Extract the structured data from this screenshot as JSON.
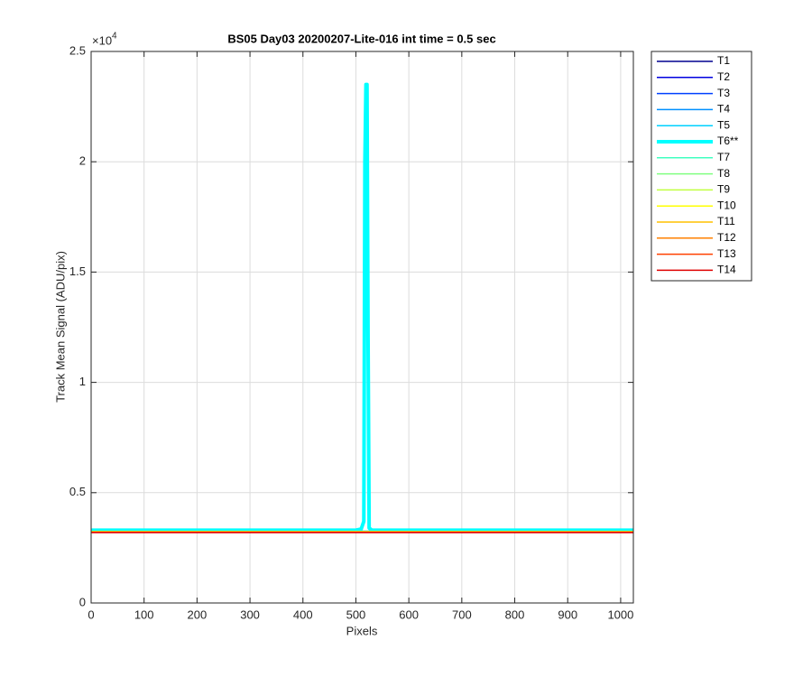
{
  "chart_data": {
    "type": "line",
    "title": "BS05 Day03 20200207-Lite-016 int time = 0.5 sec",
    "xlabel": "Pixels",
    "ylabel": "Track Mean Signal (ADU/pix)",
    "exponent_base": "×10",
    "exponent_power": "4",
    "x": [
      1,
      500,
      510,
      515,
      517,
      519,
      521,
      523,
      525,
      530,
      1024
    ],
    "xlim": [
      0,
      1024
    ],
    "xticks": [
      0,
      100,
      200,
      300,
      400,
      500,
      600,
      700,
      800,
      900,
      1000
    ],
    "ylim": [
      0,
      25000
    ],
    "yticks": [
      0,
      {
        "value": 5000,
        "label": "0.5"
      },
      {
        "value": 10000,
        "label": "1"
      },
      {
        "value": 15000,
        "label": "1.5"
      },
      {
        "value": 20000,
        "label": "2"
      },
      {
        "value": 25000,
        "label": "2.5"
      }
    ],
    "grid": true,
    "legend": "outside-right",
    "series": [
      {
        "name": "T1",
        "color": "#00008f",
        "width": 1.5,
        "values": [
          3240,
          3240,
          3240,
          3240,
          3240,
          3240,
          3240,
          3240,
          3240,
          3240,
          3240
        ]
      },
      {
        "name": "T2",
        "color": "#0000df",
        "width": 1.5,
        "values": [
          3240,
          3240,
          3240,
          3240,
          3240,
          3240,
          3240,
          3240,
          3240,
          3240,
          3240
        ]
      },
      {
        "name": "T3",
        "color": "#0040ff",
        "width": 1.5,
        "values": [
          3240,
          3240,
          3240,
          3240,
          3240,
          3240,
          3240,
          3240,
          3240,
          3240,
          3240
        ]
      },
      {
        "name": "T4",
        "color": "#0090ff",
        "width": 1.5,
        "values": [
          3250,
          3250,
          3250,
          3250,
          3250,
          3250,
          3250,
          3250,
          3250,
          3250,
          3250
        ]
      },
      {
        "name": "T5",
        "color": "#00d0ff",
        "width": 1.5,
        "values": [
          3260,
          3260,
          3260,
          3260,
          3260,
          3260,
          3260,
          3260,
          3260,
          3260,
          3260
        ]
      },
      {
        "name": "T6**",
        "color": "#00ffff",
        "width": 4,
        "values": [
          3300,
          3300,
          3350,
          3700,
          20000,
          23500,
          23500,
          12000,
          3400,
          3300,
          3300
        ]
      },
      {
        "name": "T7",
        "color": "#40ffc0",
        "width": 1.5,
        "values": [
          3250,
          3250,
          3250,
          3250,
          3250,
          3250,
          3250,
          3250,
          3250,
          3250,
          3250
        ]
      },
      {
        "name": "T8",
        "color": "#80ff80",
        "width": 1.5,
        "values": [
          3240,
          3240,
          3240,
          3240,
          3240,
          3240,
          3240,
          3240,
          3240,
          3240,
          3240
        ]
      },
      {
        "name": "T9",
        "color": "#c0ff40",
        "width": 1.5,
        "values": [
          3230,
          3230,
          3230,
          3230,
          3230,
          3230,
          3230,
          3230,
          3230,
          3230,
          3230
        ]
      },
      {
        "name": "T10",
        "color": "#ffff00",
        "width": 1.5,
        "values": [
          3230,
          3230,
          3230,
          3230,
          3230,
          3230,
          3230,
          3230,
          3230,
          3230,
          3230
        ]
      },
      {
        "name": "T11",
        "color": "#ffc000",
        "width": 1.5,
        "values": [
          3220,
          3220,
          3220,
          3220,
          3220,
          3220,
          3220,
          3220,
          3220,
          3220,
          3220
        ]
      },
      {
        "name": "T12",
        "color": "#ff8000",
        "width": 1.5,
        "values": [
          3210,
          3210,
          3210,
          3210,
          3210,
          3210,
          3210,
          3210,
          3210,
          3210,
          3210
        ]
      },
      {
        "name": "T13",
        "color": "#ff4000",
        "width": 1.5,
        "values": [
          3200,
          3200,
          3200,
          3200,
          3200,
          3200,
          3200,
          3200,
          3200,
          3200,
          3200
        ]
      },
      {
        "name": "T14",
        "color": "#df0000",
        "width": 1.5,
        "values": [
          3190,
          3190,
          3190,
          3190,
          3190,
          3190,
          3190,
          3190,
          3190,
          3190,
          3190
        ]
      }
    ]
  }
}
